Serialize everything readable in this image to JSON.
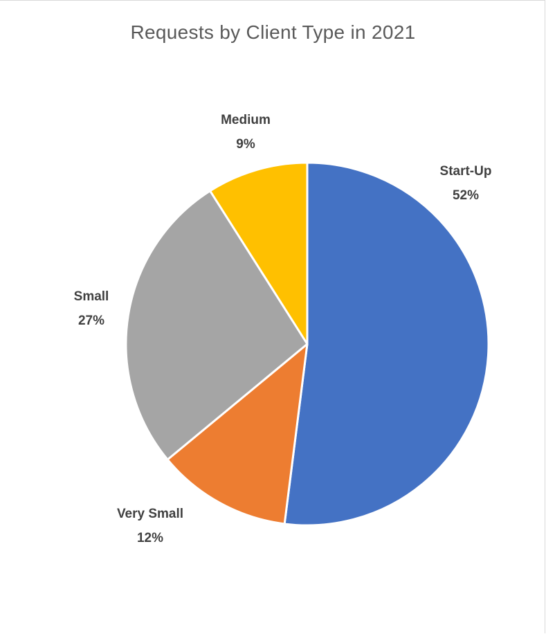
{
  "chart_data": {
    "type": "pie",
    "title": "Requests by Client Type in 2021",
    "slices": [
      {
        "label": "Start-Up",
        "value": 52,
        "value_label": "52%",
        "color": "#4472C4"
      },
      {
        "label": "Very Small",
        "value": 12,
        "value_label": "12%",
        "color": "#ED7D31"
      },
      {
        "label": "Small",
        "value": 27,
        "value_label": "27%",
        "color": "#A5A5A5"
      },
      {
        "label": "Medium",
        "value": 9,
        "value_label": "9%",
        "color": "#FFC000"
      }
    ],
    "start_angle": "12 o'clock",
    "direction": "clockwise",
    "legend": "none",
    "data_labels": "category name and percentage, bold, outside end"
  }
}
